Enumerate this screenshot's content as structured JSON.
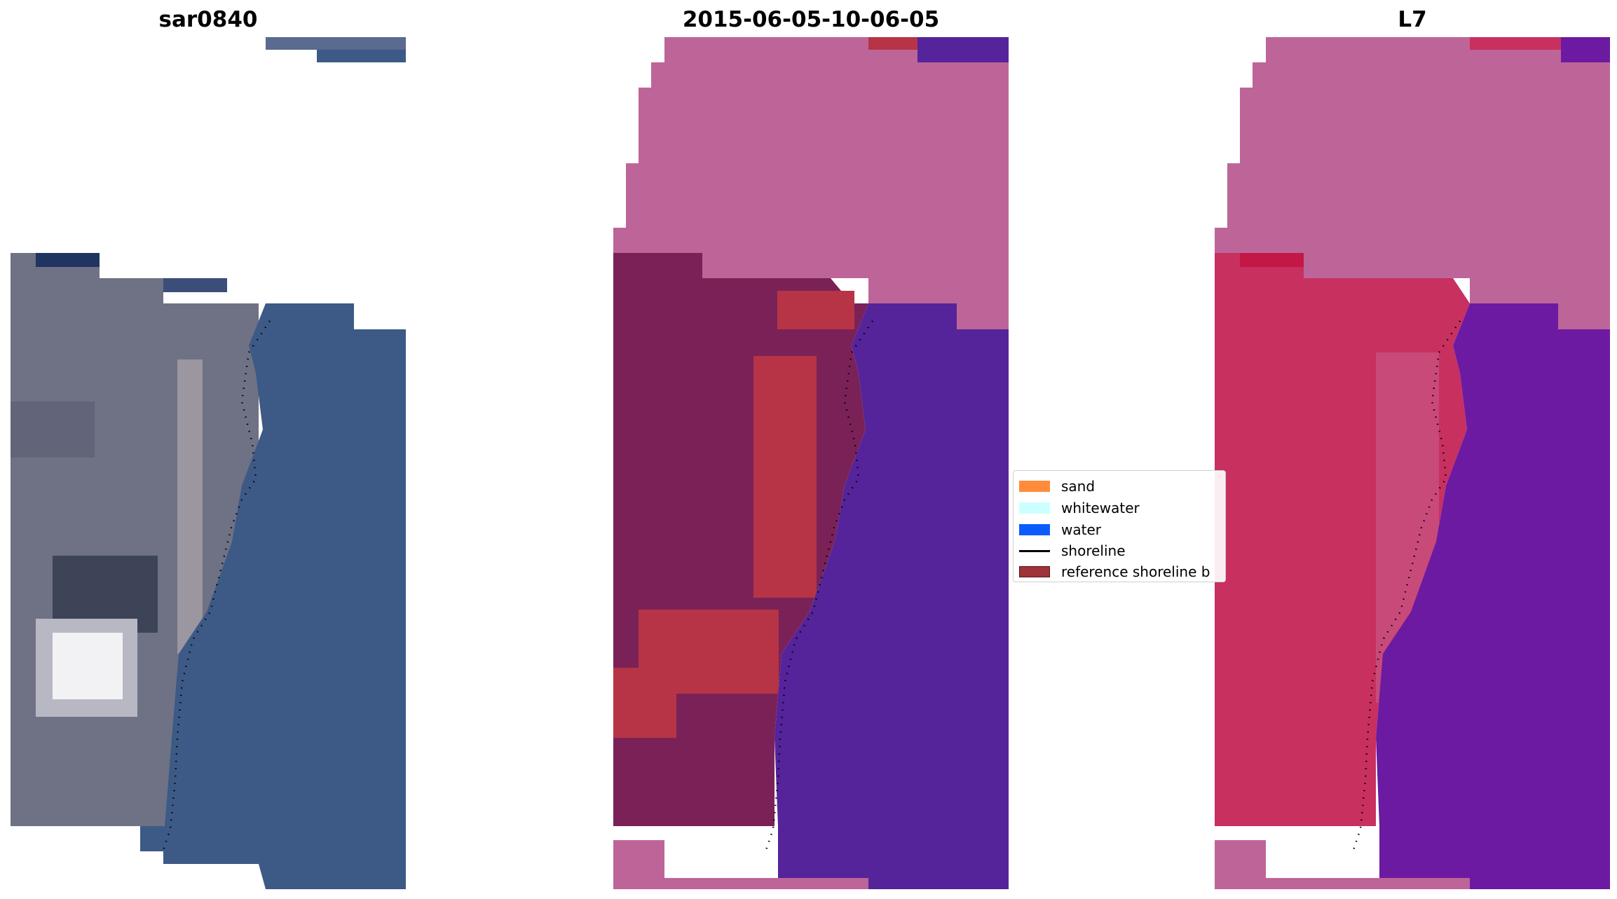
{
  "figure": {
    "panels": [
      {
        "title": "sar0840"
      },
      {
        "title": "2015-06-05-10-06-05"
      },
      {
        "title": "L7"
      }
    ]
  },
  "legend": {
    "items": [
      {
        "label": "sand",
        "color": "#ff8c3a"
      },
      {
        "label": "whitewater",
        "color": "#ccffff"
      },
      {
        "label": "water",
        "color": "#0b5cff"
      },
      {
        "label": "shoreline",
        "color": "#000000"
      },
      {
        "label": "reference shoreline b",
        "color": "#a0333a"
      }
    ]
  },
  "colors": {
    "rgb_land": "#6f7284",
    "rgb_water": "#3d5a86",
    "rgb_cloud": "#f2f2f4",
    "class_land": "#7a2258",
    "class_sand_overlay": "#b63446",
    "class_water": "#55239a",
    "class_nodata": "#bd6598",
    "false_land": "#c8305f",
    "false_water": "#6d1aa2",
    "false_nodata": "#bd6598"
  }
}
